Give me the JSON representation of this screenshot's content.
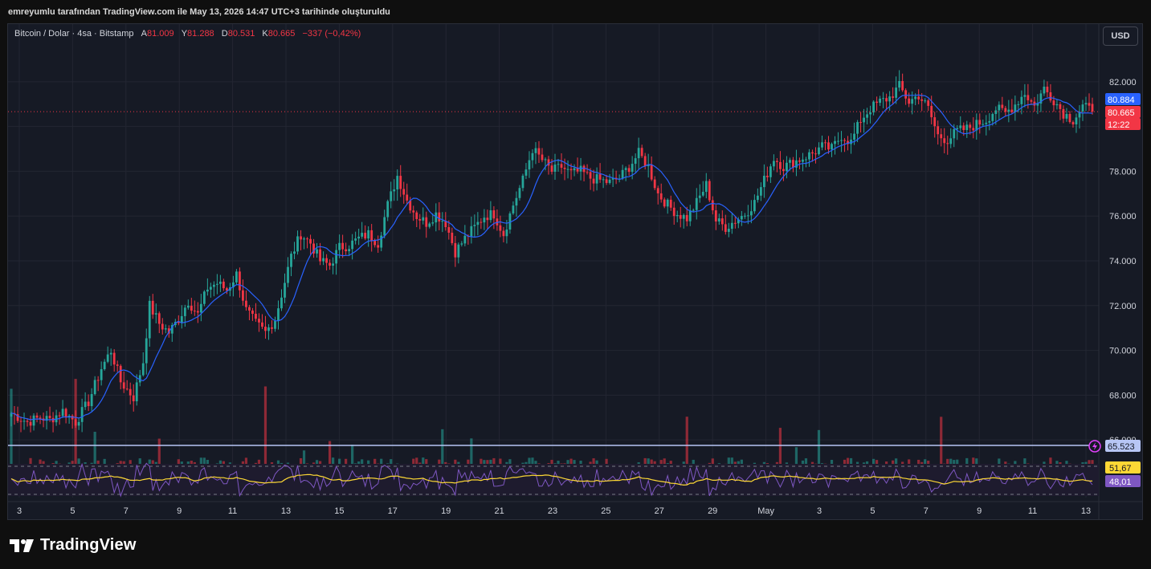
{
  "caption": "emreyumlu tarafından TradingView.com ile May 13, 2026 14:47 UTC+3 tarihinde oluşturuldu",
  "legend": {
    "symbol": "Bitcoin / Dolar · 4sa · Bitstamp",
    "o_label": "A",
    "o_value": "81.009",
    "h_label": "Y",
    "h_value": "81.288",
    "l_label": "D",
    "l_value": "80.531",
    "c_label": "K",
    "c_value": "80.665",
    "change": "−337 (−0,42%)"
  },
  "currency_button": "USD",
  "brand": "TradingView",
  "colors": {
    "up": "#26a69a",
    "down": "#f23645",
    "ma": "#2962ff",
    "rsi": "#7e57c2",
    "rsi_ma": "#fdd835",
    "background": "#161a25",
    "grid": "#232632",
    "axis_text": "#d1d4dc"
  },
  "price_labels": [
    {
      "text": "80.884",
      "color": "#2962ff"
    },
    {
      "text": "80.665",
      "color": "#f23645"
    },
    {
      "text": "12:22",
      "color": "#f23645"
    },
    {
      "text": "65.523",
      "color": "#b7c6f5"
    }
  ],
  "rsi_labels": [
    {
      "text": "51,67",
      "color": "#fdd835"
    },
    {
      "text": "48,01",
      "color": "#7e57c2"
    }
  ],
  "chart_data": [
    {
      "type": "candlestick",
      "title": "Bitcoin / Dolar · 4sa · Bitstamp",
      "ylim": [
        64500,
        83500
      ],
      "y_ticks": [
        66000,
        68000,
        70000,
        72000,
        74000,
        76000,
        78000,
        80000,
        82000
      ],
      "y_tick_labels": [
        "66.000",
        "68.000",
        "70.000",
        "72.000",
        "74.000",
        "76.000",
        "78.000",
        "80.000",
        "82.000"
      ],
      "x_tick_labels": [
        "3",
        "5",
        "7",
        "9",
        "11",
        "13",
        "15",
        "17",
        "19",
        "21",
        "23",
        "25",
        "27",
        "29",
        "May",
        "3",
        "5",
        "7",
        "9",
        "11",
        "13"
      ],
      "grid": true,
      "last": {
        "open": 81009,
        "high": 81288,
        "low": 80531,
        "close": 80665
      },
      "ma_last": 80884,
      "price_path": [
        [
          0,
          67200
        ],
        [
          5,
          66800
        ],
        [
          9,
          67000
        ],
        [
          12,
          66900
        ],
        [
          16,
          67300
        ],
        [
          20,
          66800
        ],
        [
          24,
          67700
        ],
        [
          28,
          69200
        ],
        [
          31,
          70000
        ],
        [
          34,
          68600
        ],
        [
          38,
          67900
        ],
        [
          41,
          69500
        ],
        [
          43,
          72000
        ],
        [
          46,
          71200
        ],
        [
          49,
          70800
        ],
        [
          52,
          71400
        ],
        [
          55,
          72200
        ],
        [
          58,
          71600
        ],
        [
          61,
          72800
        ],
        [
          64,
          73000
        ],
        [
          67,
          72700
        ],
        [
          70,
          73400
        ],
        [
          73,
          71800
        ],
        [
          76,
          71200
        ],
        [
          79,
          70800
        ],
        [
          82,
          71400
        ],
        [
          84,
          72500
        ],
        [
          87,
          74200
        ],
        [
          90,
          75200
        ],
        [
          93,
          74800
        ],
        [
          96,
          74000
        ],
        [
          99,
          73800
        ],
        [
          102,
          74600
        ],
        [
          105,
          74700
        ],
        [
          108,
          75000
        ],
        [
          111,
          75200
        ],
        [
          114,
          74800
        ],
        [
          117,
          76500
        ],
        [
          120,
          77800
        ],
        [
          123,
          76700
        ],
        [
          126,
          76000
        ],
        [
          129,
          75700
        ],
        [
          132,
          76100
        ],
        [
          135,
          75700
        ],
        [
          138,
          74400
        ],
        [
          141,
          75000
        ],
        [
          144,
          75500
        ],
        [
          147,
          76000
        ],
        [
          150,
          76100
        ],
        [
          153,
          75200
        ],
        [
          156,
          76500
        ],
        [
          159,
          77600
        ],
        [
          162,
          79000
        ],
        [
          165,
          78500
        ],
        [
          168,
          78000
        ],
        [
          171,
          78200
        ],
        [
          174,
          77900
        ],
        [
          177,
          78000
        ],
        [
          180,
          77700
        ],
        [
          183,
          77600
        ],
        [
          186,
          77500
        ],
        [
          189,
          77700
        ],
        [
          192,
          78200
        ],
        [
          195,
          78800
        ],
        [
          198,
          78200
        ],
        [
          201,
          77000
        ],
        [
          204,
          76500
        ],
        [
          207,
          76100
        ],
        [
          210,
          75900
        ],
        [
          213,
          76600
        ],
        [
          216,
          77400
        ],
        [
          219,
          75800
        ],
        [
          222,
          75500
        ],
        [
          225,
          75800
        ],
        [
          228,
          76100
        ],
        [
          231,
          76600
        ],
        [
          234,
          77600
        ],
        [
          237,
          78600
        ],
        [
          240,
          78200
        ],
        [
          243,
          78400
        ],
        [
          246,
          78600
        ],
        [
          249,
          78800
        ],
        [
          252,
          79100
        ],
        [
          255,
          79000
        ],
        [
          258,
          79600
        ],
        [
          261,
          79300
        ],
        [
          264,
          80300
        ],
        [
          267,
          80800
        ],
        [
          270,
          81100
        ],
        [
          273,
          81300
        ],
        [
          276,
          81800
        ],
        [
          279,
          81100
        ],
        [
          282,
          81400
        ],
        [
          285,
          80800
        ],
        [
          288,
          79600
        ],
        [
          291,
          79400
        ],
        [
          294,
          79800
        ],
        [
          297,
          79900
        ],
        [
          300,
          80100
        ],
        [
          303,
          80300
        ],
        [
          306,
          80800
        ],
        [
          309,
          80600
        ],
        [
          312,
          81000
        ],
        [
          315,
          81500
        ],
        [
          318,
          80900
        ],
        [
          321,
          81700
        ],
        [
          324,
          81200
        ],
        [
          327,
          80600
        ],
        [
          330,
          80300
        ],
        [
          333,
          80900
        ],
        [
          336,
          80665
        ]
      ]
    },
    {
      "type": "bar",
      "title": "Volume",
      "notes": "volume histogram at bottom of price pane, colored by candle direction"
    },
    {
      "type": "line",
      "title": "RSI",
      "series": [
        {
          "name": "RSI",
          "last": 48.01
        },
        {
          "name": "RSI MA",
          "last": 51.67
        }
      ]
    }
  ]
}
